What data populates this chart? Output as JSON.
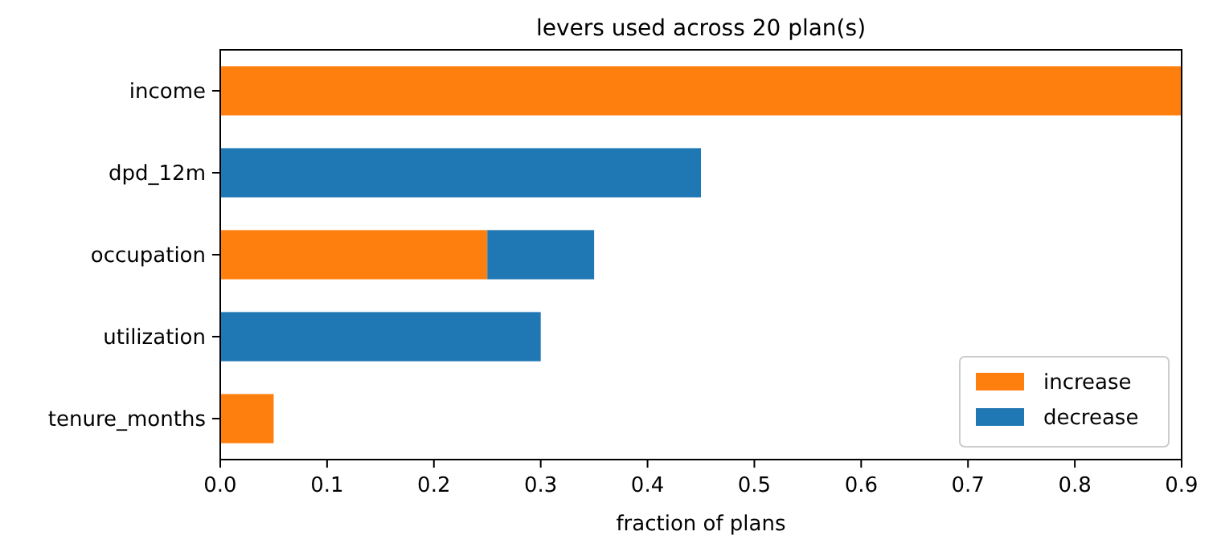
{
  "chart_data": {
    "type": "bar",
    "orientation": "horizontal",
    "stacked": true,
    "title": "levers used across 20 plan(s)",
    "xlabel": "fraction of plans",
    "categories": [
      "income",
      "dpd_12m",
      "occupation",
      "utilization",
      "tenure_months"
    ],
    "series": [
      {
        "name": "increase",
        "color": "#ff7f0e",
        "values": [
          0.9,
          0,
          0.25,
          0,
          0.05
        ]
      },
      {
        "name": "decrease",
        "color": "#1f77b4",
        "values": [
          0,
          0.45,
          0.1,
          0.3,
          0
        ]
      }
    ],
    "xlim": [
      0,
      0.9
    ],
    "xticks": [
      {
        "value": 0,
        "label": "0.0"
      },
      0.1,
      0.2,
      0.3,
      0.4,
      0.5,
      0.6,
      0.7,
      0.8,
      0.9
    ],
    "legend": "bottom right",
    "grid": false
  }
}
